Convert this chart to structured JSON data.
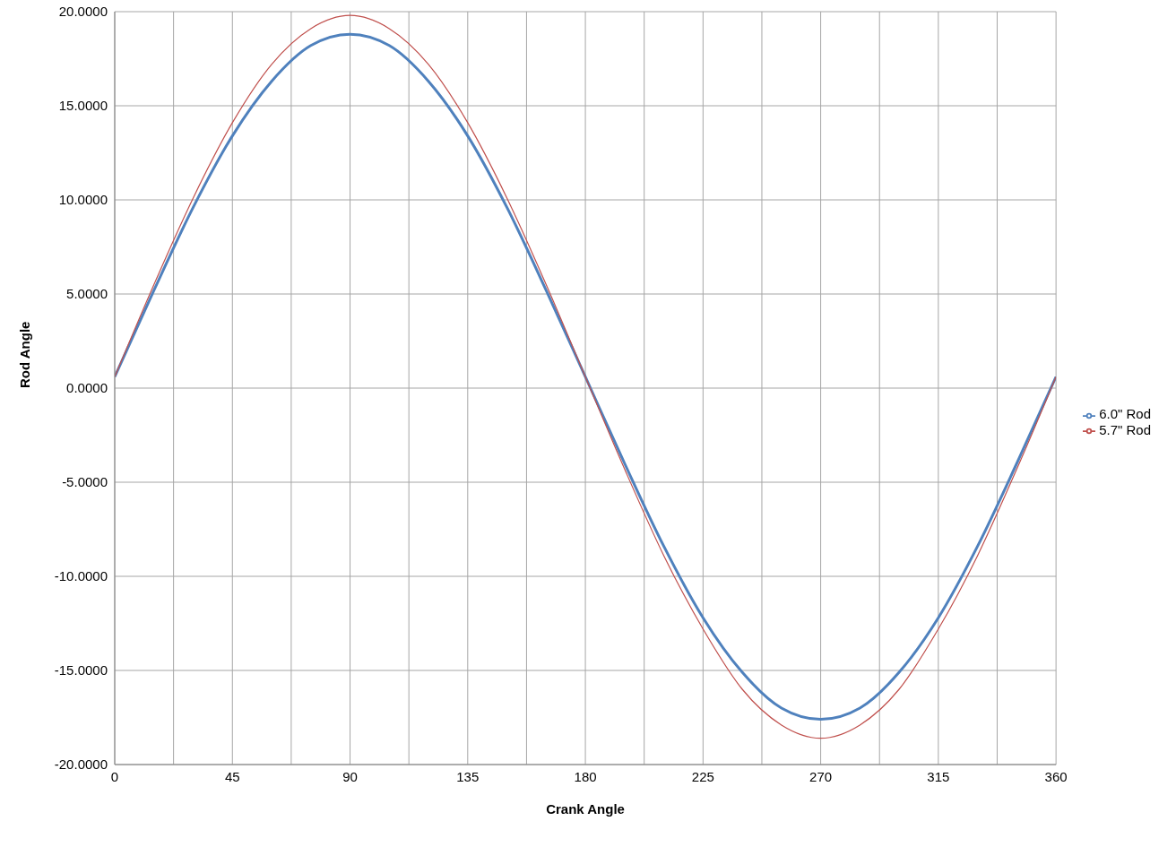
{
  "chart_data": {
    "type": "line",
    "xlabel": "Crank Angle",
    "ylabel": "Rod Angle",
    "x": [
      0,
      15,
      30,
      45,
      60,
      75,
      90,
      105,
      120,
      135,
      150,
      165,
      180,
      195,
      210,
      225,
      240,
      255,
      270,
      285,
      300,
      315,
      330,
      345,
      360
    ],
    "series": [
      {
        "name": "6.0\" Rod",
        "color": "#4f81bd",
        "values": [
          0.6,
          5.2,
          9.6,
          13.4,
          16.3,
          18.2,
          18.8,
          18.2,
          16.3,
          13.4,
          9.6,
          5.2,
          0.6,
          -4.0,
          -8.4,
          -12.2,
          -15.1,
          -17.0,
          -17.6,
          -17.0,
          -15.1,
          -12.2,
          -8.4,
          -4.0,
          0.6
        ]
      },
      {
        "name": "5.7\" Rod",
        "color": "#c0504d",
        "values": [
          0.6,
          5.5,
          10.1,
          14.1,
          17.2,
          19.1,
          19.8,
          19.1,
          17.2,
          14.1,
          10.1,
          5.5,
          0.6,
          -4.3,
          -8.9,
          -12.8,
          -16.0,
          -17.9,
          -18.6,
          -17.9,
          -16.0,
          -12.8,
          -8.9,
          -4.3,
          0.6
        ]
      }
    ],
    "xlim": [
      0,
      360
    ],
    "xticks": [
      0,
      {
        "value": 22.5,
        "label": null
      },
      45,
      {
        "value": 67.5,
        "label": null
      },
      90,
      {
        "value": 112.5,
        "label": null
      },
      135,
      {
        "value": 157.5,
        "label": null
      },
      180,
      {
        "value": 202.5,
        "label": null
      },
      225,
      {
        "value": 247.5,
        "label": null
      },
      270,
      {
        "value": 292.5,
        "label": null
      },
      315,
      {
        "value": 337.5,
        "label": null
      },
      360
    ],
    "ylim": [
      -20,
      20
    ],
    "yticks": [
      {
        "value": -20,
        "label": "-20.0000"
      },
      {
        "value": -15,
        "label": "-15.0000"
      },
      {
        "value": -10,
        "label": "-10.0000"
      },
      {
        "value": -5,
        "label": "-5.0000"
      },
      {
        "value": 0,
        "label": "0.0000"
      },
      {
        "value": 5,
        "label": "5.0000"
      },
      {
        "value": 10,
        "label": "10.0000"
      },
      {
        "value": 15,
        "label": "15.0000"
      },
      {
        "value": 20,
        "label": "20.0000"
      }
    ],
    "grid": true,
    "legend": "right",
    "marker": "none",
    "line_style": "solid"
  }
}
